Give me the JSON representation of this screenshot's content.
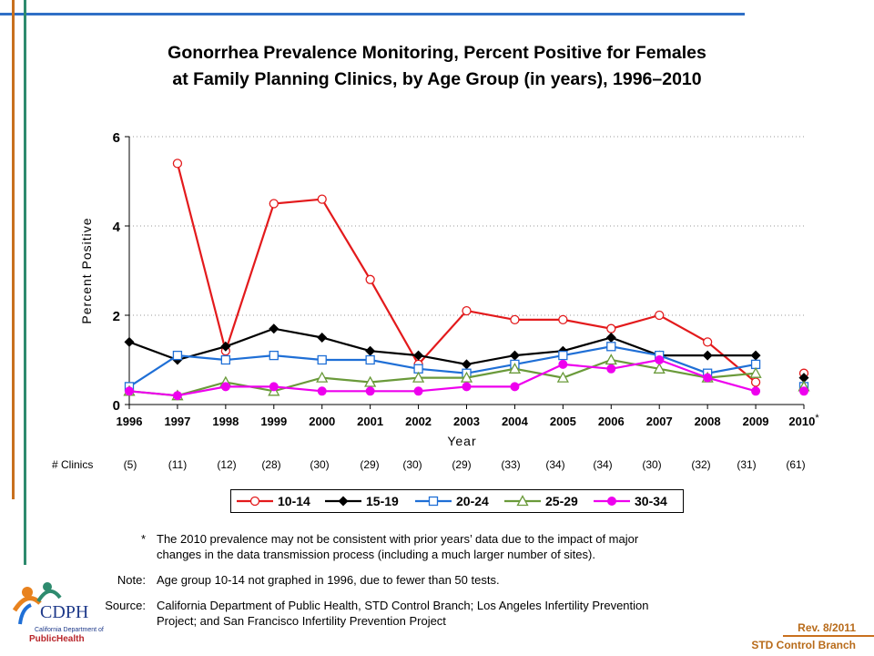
{
  "title_line1": "Gonorrhea Prevalence Monitoring, Percent Positive for Females",
  "title_line2": "at Family Planning Clinics, by Age Group (in years), 1996–2010",
  "clinics_label": "# Clinics",
  "clinics": [
    "(5)",
    "(11)",
    "(12)",
    "(28)",
    "(30)",
    "(29)",
    "(30)",
    "(29)",
    "(33)",
    "(34)",
    "(34)",
    "(30)",
    "(32)",
    "(31)",
    "(61)"
  ],
  "notes": {
    "asterisk_mark": "*",
    "asterisk_line1": "The 2010 prevalence may not be consistent with prior years’ data due to the impact of major",
    "asterisk_line2": "changes in the data transmission process (including a much larger number of sites).",
    "note_label": "Note:",
    "note_text": "Age group 10-14 not graphed in 1996, due to fewer than 50 tests.",
    "source_label": "Source:",
    "source_line1": "California Department of Public Health, STD Control Branch; Los Angeles Infertility Prevention",
    "source_line2": "Project; and San Francisco Infertility Prevention Project"
  },
  "footer": {
    "rev": "Rev. 8/2011",
    "branch": "STD Control Branch"
  },
  "logo": {
    "name": "CDPH",
    "line1": "California Department of",
    "line2": "PublicHealth"
  },
  "chart_data": {
    "type": "line",
    "title": "Gonorrhea Prevalence Monitoring, Percent Positive for Females at Family Planning Clinics, by Age Group (in years), 1996–2010",
    "xlabel": "Year",
    "ylabel": "Percent Positive",
    "categories": [
      "1996",
      "1997",
      "1998",
      "1999",
      "2000",
      "2001",
      "2002",
      "2003",
      "2004",
      "2005",
      "2006",
      "2007",
      "2008",
      "2009",
      "2010"
    ],
    "x_tick_labels": [
      "1996",
      "1997",
      "1998",
      "1999",
      "2000",
      "2001",
      "2002",
      "2003",
      "2004",
      "2005",
      "2006",
      "2007",
      "2008",
      "2009",
      "2010*"
    ],
    "ylim": [
      0,
      6
    ],
    "yticks": [
      0,
      2,
      4,
      6
    ],
    "grid": "horizontal dotted",
    "legend_position": "bottom",
    "series": [
      {
        "name": "10-14",
        "color": "#e31a1c",
        "marker": "circle-open",
        "values": [
          null,
          5.4,
          1.2,
          4.5,
          4.6,
          2.8,
          0.9,
          2.1,
          1.9,
          1.9,
          1.7,
          2.0,
          1.4,
          0.5,
          0.7
        ]
      },
      {
        "name": "15-19",
        "color": "#000000",
        "marker": "diamond-filled",
        "values": [
          1.4,
          1.0,
          1.3,
          1.7,
          1.5,
          1.2,
          1.1,
          0.9,
          1.1,
          1.2,
          1.5,
          1.1,
          1.1,
          1.1,
          0.6
        ]
      },
      {
        "name": "20-24",
        "color": "#1f6fd6",
        "marker": "square-open",
        "values": [
          0.4,
          1.1,
          1.0,
          1.1,
          1.0,
          1.0,
          0.8,
          0.7,
          0.9,
          1.1,
          1.3,
          1.1,
          0.7,
          0.9,
          0.4
        ]
      },
      {
        "name": "25-29",
        "color": "#6a9a3a",
        "marker": "triangle-open",
        "values": [
          0.3,
          0.2,
          0.5,
          0.3,
          0.6,
          0.5,
          0.6,
          0.6,
          0.8,
          0.6,
          1.0,
          0.8,
          0.6,
          0.7,
          0.4
        ]
      },
      {
        "name": "30-34",
        "color": "#ee00ee",
        "marker": "circle-filled",
        "values": [
          0.3,
          0.2,
          0.4,
          0.4,
          0.3,
          0.3,
          0.3,
          0.4,
          0.4,
          0.9,
          0.8,
          1.0,
          0.6,
          0.3,
          0.3
        ]
      }
    ],
    "break_before_last": true
  }
}
